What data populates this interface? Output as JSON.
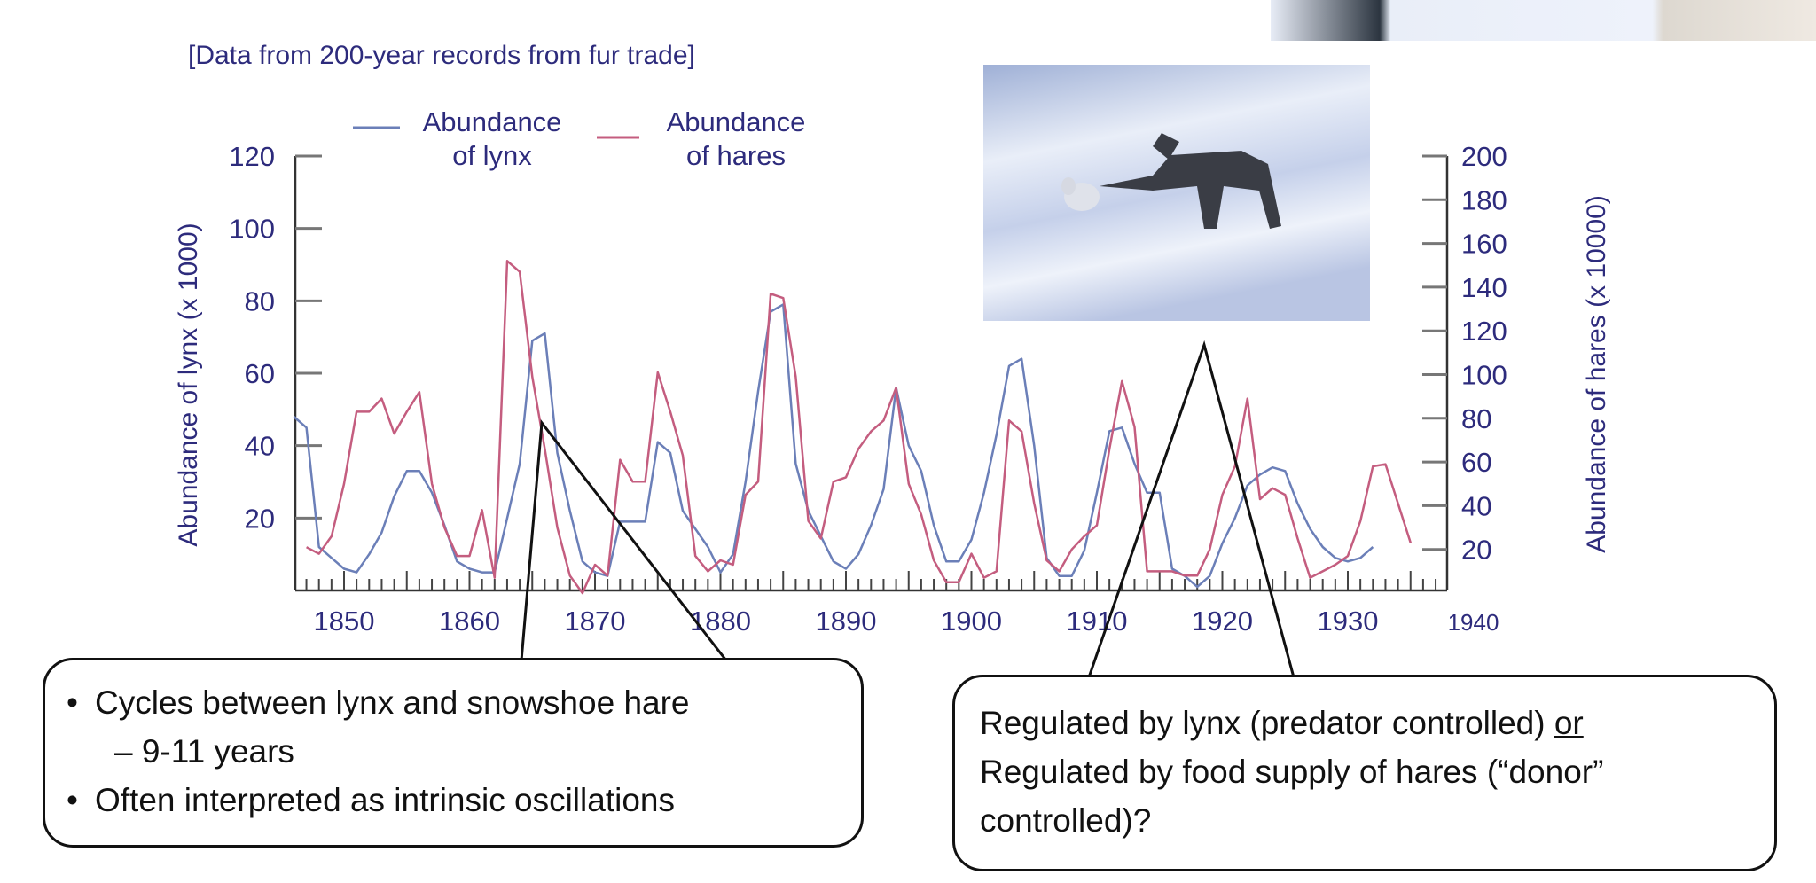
{
  "caption": "[Data from 200-year records from fur trade]",
  "legend": [
    {
      "line1": "Abundance",
      "line2": "of lynx",
      "color": "#6b7fb8"
    },
    {
      "line1": "Abundance",
      "line2": "of hares",
      "color": "#c45d7f"
    }
  ],
  "chart_data": {
    "type": "line",
    "title": "",
    "xlabel": "",
    "ylabel": "Abundance of lynx (x 1000)",
    "ylabel_right": "Abundance of hares (x 10000)",
    "xlim": [
      1846,
      1940
    ],
    "ylim": [
      0,
      120
    ],
    "ylim_right": [
      0,
      200
    ],
    "x_ticks": [
      "1850",
      "1860",
      "1870",
      "1880",
      "1890",
      "1900",
      "1910",
      "1920",
      "1930",
      "1940"
    ],
    "y_ticks": [
      "20",
      "40",
      "60",
      "80",
      "100",
      "120"
    ],
    "y_ticks_right": [
      "20",
      "40",
      "60",
      "80",
      "100",
      "120",
      "140",
      "160",
      "180",
      "200"
    ],
    "grid": false,
    "legend_position": "top",
    "series": [
      {
        "name": "Abundance of lynx",
        "axis": "left",
        "color": "#6b7fb8",
        "x_start": 1846,
        "values": [
          48,
          45,
          12,
          9,
          6,
          5,
          10,
          16,
          26,
          33,
          33,
          27,
          18,
          8,
          6,
          5,
          5,
          20,
          35,
          69,
          71,
          38,
          22,
          8,
          5,
          4,
          19,
          19,
          19,
          41,
          38,
          22,
          17,
          12,
          5,
          10,
          30,
          55,
          77,
          79,
          35,
          22,
          15,
          8,
          6,
          10,
          18,
          28,
          56,
          40,
          33,
          18,
          8,
          8,
          14,
          27,
          43,
          62,
          64,
          40,
          9,
          4,
          4,
          11,
          27,
          44,
          45,
          35,
          27,
          27,
          6,
          4,
          1,
          4,
          13,
          20,
          29,
          32,
          34,
          33,
          24,
          17,
          12,
          9,
          8,
          9,
          12
        ]
      },
      {
        "name": "Abundance of hares",
        "axis": "right",
        "color": "#c45d7f",
        "x_start": 1847,
        "values": [
          21,
          18,
          26,
          50,
          83,
          83,
          89,
          73,
          83,
          92,
          50,
          30,
          17,
          17,
          38,
          7,
          152,
          147,
          99,
          66,
          30,
          8,
          0,
          13,
          8,
          61,
          51,
          51,
          101,
          83,
          63,
          17,
          10,
          15,
          13,
          45,
          51,
          137,
          135,
          99,
          33,
          25,
          51,
          53,
          66,
          74,
          79,
          94,
          50,
          36,
          15,
          5,
          5,
          18,
          7,
          10,
          79,
          74,
          41,
          15,
          10,
          20,
          26,
          31,
          66,
          97,
          76,
          10,
          10,
          10,
          8,
          8,
          20,
          45,
          58,
          89,
          43,
          48,
          45,
          25,
          7,
          10,
          13,
          17,
          33,
          58,
          59,
          41,
          23
        ]
      }
    ]
  },
  "callout_left": {
    "bullet1": "Cycles between lynx and snowshoe hare",
    "sub1": "–  9-11 years",
    "bullet2": "Often interpreted as intrinsic oscillations"
  },
  "callout_right": {
    "line1_a": "Regulated by lynx (predator controlled) ",
    "line1_or": "or",
    "line2": "Regulated by food supply of hares (“donor”",
    "line3": "controlled)?"
  }
}
